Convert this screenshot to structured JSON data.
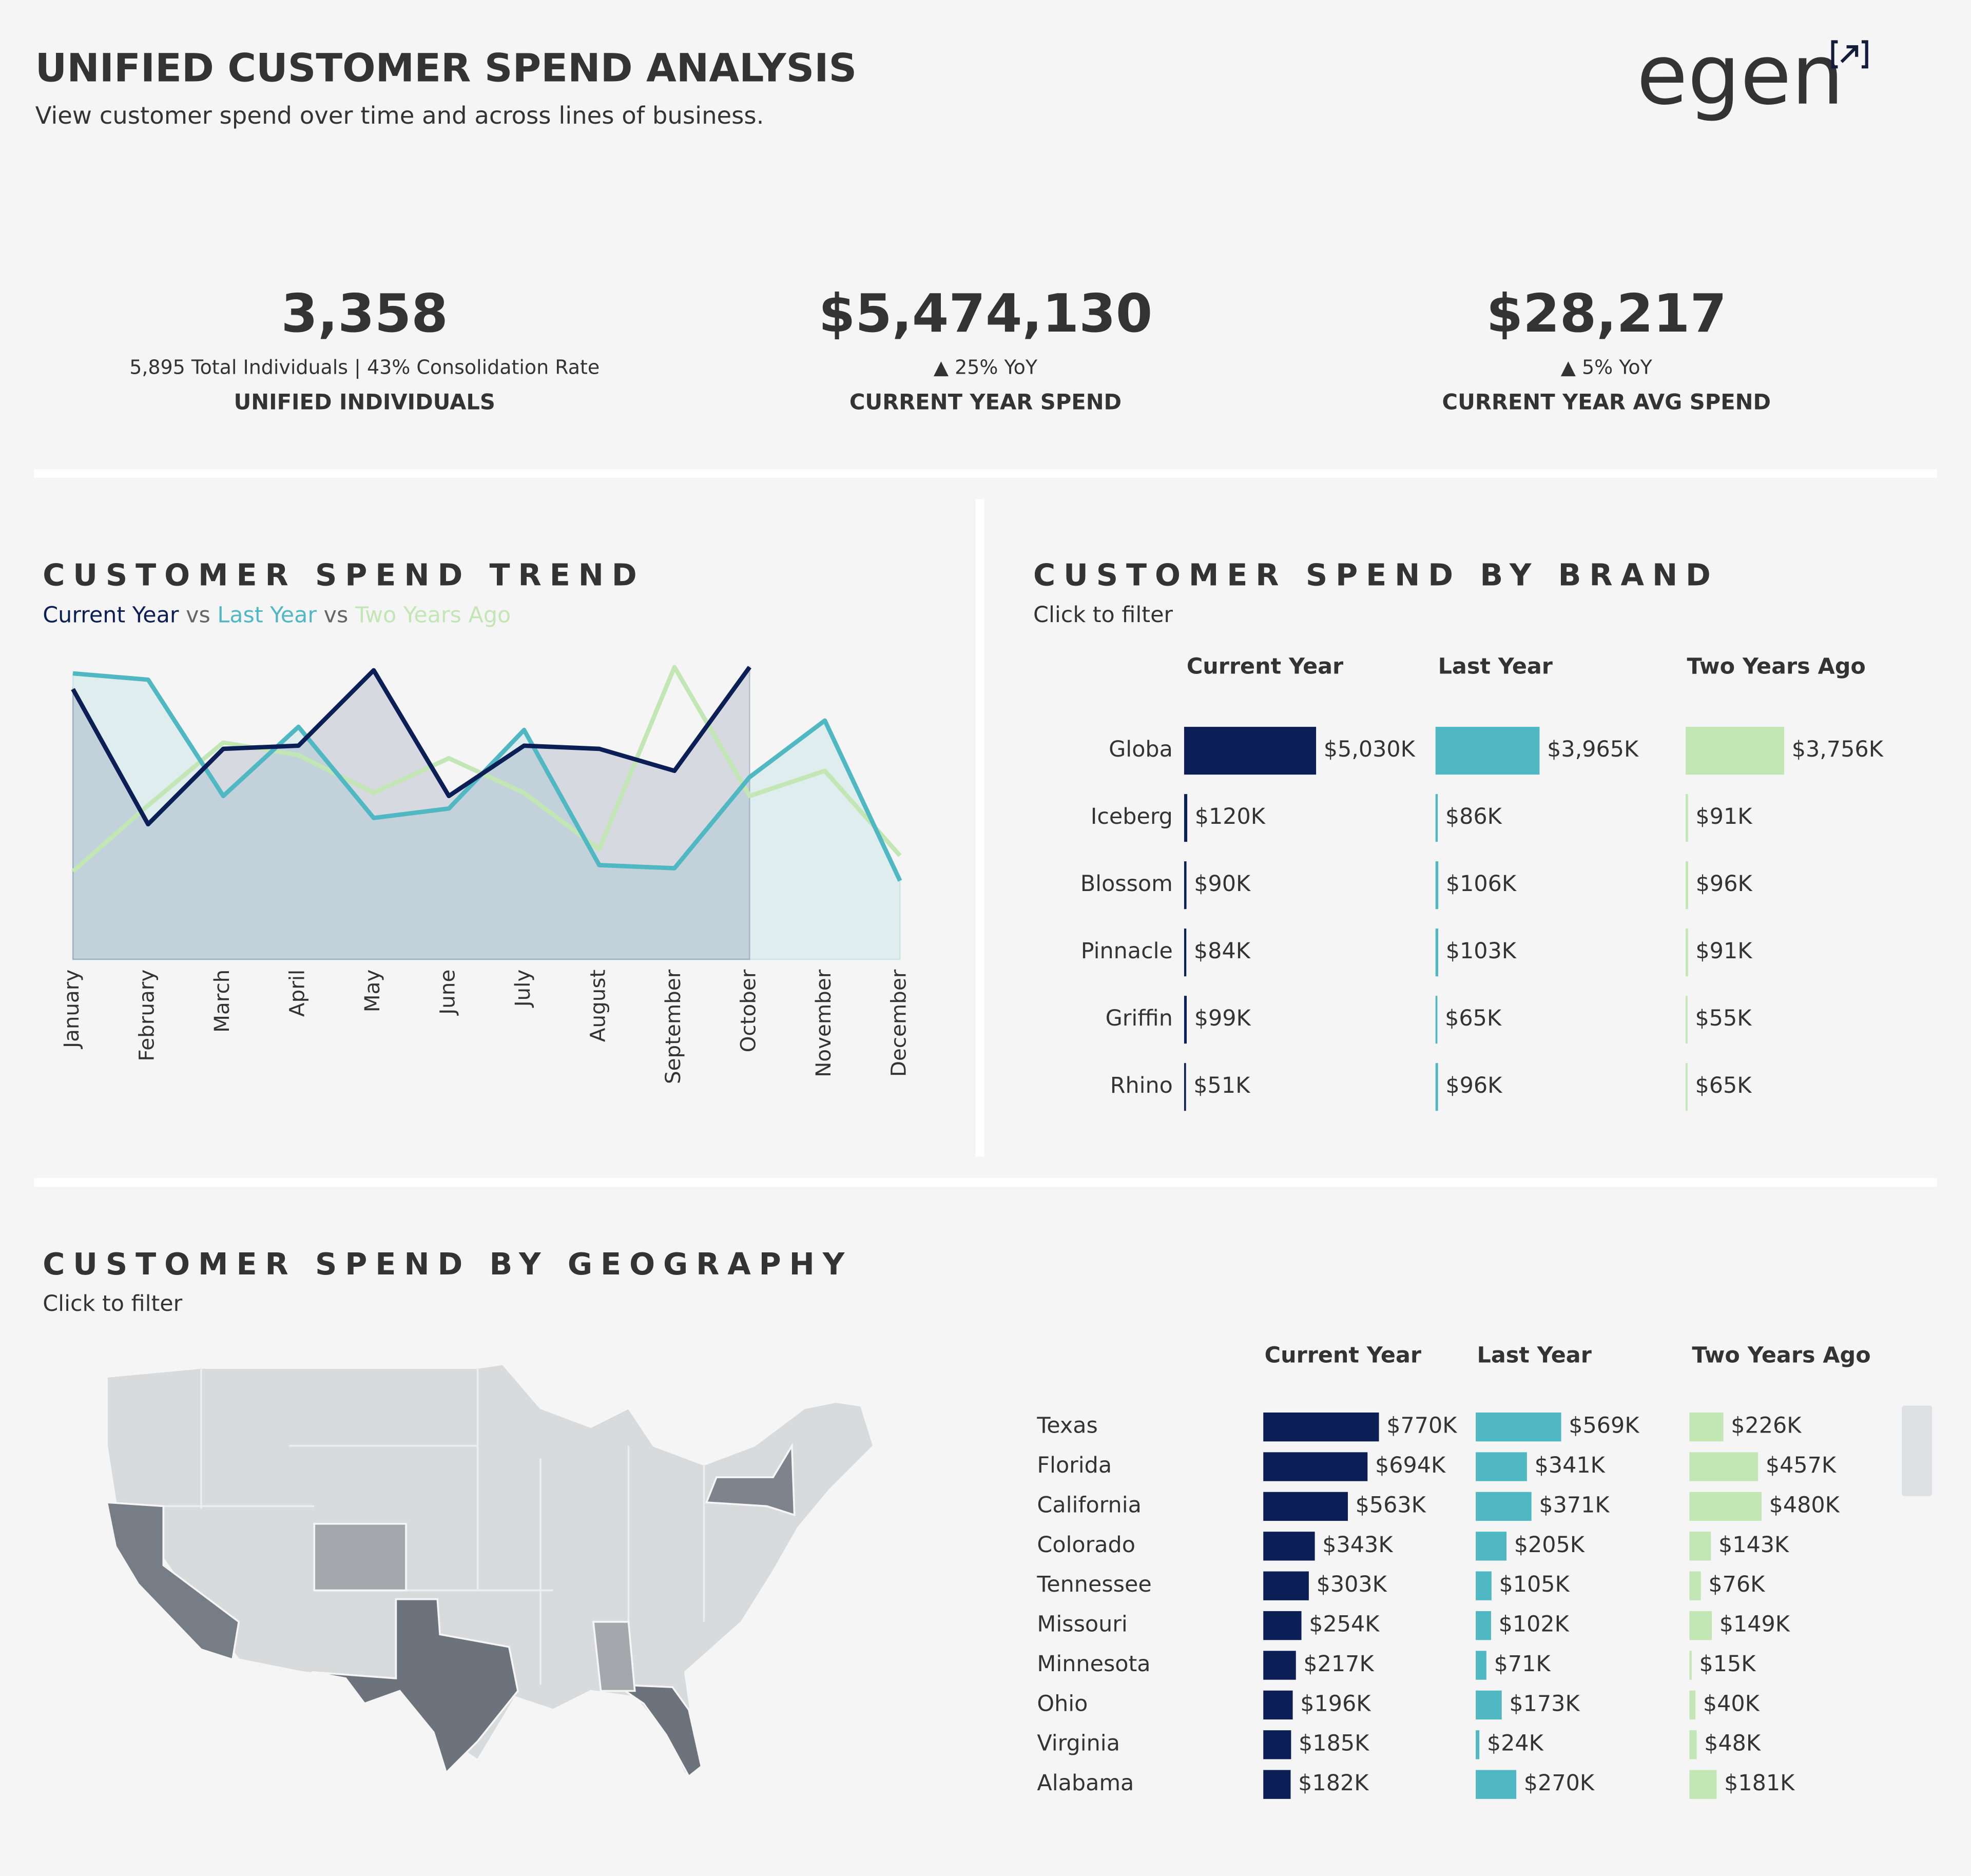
{
  "header": {
    "title": "UNIFIED CUSTOMER SPEND ANALYSIS",
    "subtitle": "View customer spend over time and across lines of business.",
    "logo": "egen"
  },
  "kpis": [
    {
      "value": "3,358",
      "detail": "5,895  Total Individuals | 43% Consolidation Rate",
      "label": "UNIFIED INDIVIDUALS"
    },
    {
      "value": "$5,474,130",
      "detail": "▲ 25% YoY",
      "label": "CURRENT YEAR SPEND"
    },
    {
      "value": "$28,217",
      "detail": "▲ 5% YoY",
      "label": "CURRENT YEAR AVG SPEND"
    }
  ],
  "chart_data": [
    {
      "type": "line",
      "title": "CUSTOMER SPEND TREND",
      "legend_separator": "vs",
      "categories": [
        "January",
        "February",
        "March",
        "April",
        "May",
        "June",
        "July",
        "August",
        "September",
        "October",
        "November",
        "December"
      ],
      "ylim": [
        0,
        100
      ],
      "series": [
        {
          "name": "Current Year",
          "color": "#0b1f56",
          "area": true,
          "values": [
            86,
            43,
            67,
            68,
            92,
            52,
            68,
            67,
            60,
            93,
            null,
            null
          ]
        },
        {
          "name": "Last Year",
          "color": "#4fb8c2",
          "area": true,
          "values": [
            91,
            89,
            52,
            74,
            45,
            48,
            73,
            30,
            29,
            58,
            76,
            25
          ]
        },
        {
          "name": "Two Years Ago",
          "color": "#c2e6b4",
          "area": false,
          "values": [
            28,
            49,
            69,
            65,
            53,
            64,
            53,
            35,
            93,
            52,
            60,
            33
          ]
        }
      ]
    },
    {
      "type": "bar",
      "orientation": "horizontal",
      "title": "CUSTOMER SPEND BY BRAND",
      "subtitle": "Click to filter",
      "categories": [
        "Globa",
        "Iceberg",
        "Blossom",
        "Pinnacle",
        "Griffin",
        "Rhino"
      ],
      "series": [
        {
          "name": "Current Year",
          "color": "#0b1f56",
          "values": [
            5030,
            120,
            90,
            84,
            99,
            51
          ],
          "value_labels": [
            "$5,030K",
            "$120K",
            "$90K",
            "$84K",
            "$99K",
            "$51K"
          ]
        },
        {
          "name": "Last Year",
          "color": "#4fb8c2",
          "values": [
            3965,
            86,
            106,
            103,
            65,
            96
          ],
          "value_labels": [
            "$3,965K",
            "$86K",
            "$106K",
            "$103K",
            "$65K",
            "$96K"
          ]
        },
        {
          "name": "Two Years Ago",
          "color": "#c2e6b4",
          "values": [
            3756,
            91,
            96,
            91,
            55,
            65
          ],
          "value_labels": [
            "$3,756K",
            "$91K",
            "$96K",
            "$91K",
            "$55K",
            "$65K"
          ]
        }
      ]
    },
    {
      "type": "bar",
      "orientation": "horizontal",
      "title": "CUSTOMER SPEND BY GEOGRAPHY",
      "subtitle": "Click to filter",
      "categories": [
        "Texas",
        "Florida",
        "California",
        "Colorado",
        "Tennessee",
        "Missouri",
        "Minnesota",
        "Ohio",
        "Virginia",
        "Alabama"
      ],
      "series": [
        {
          "name": "Current Year",
          "color": "#0b1f56",
          "values": [
            770,
            694,
            563,
            343,
            303,
            254,
            217,
            196,
            185,
            182
          ],
          "value_labels": [
            "$770K",
            "$694K",
            "$563K",
            "$343K",
            "$303K",
            "$254K",
            "$217K",
            "$196K",
            "$185K",
            "$182K"
          ]
        },
        {
          "name": "Last Year",
          "color": "#4fb8c2",
          "values": [
            569,
            341,
            371,
            205,
            105,
            102,
            71,
            173,
            24,
            270
          ],
          "value_labels": [
            "$569K",
            "$341K",
            "$371K",
            "$205K",
            "$105K",
            "$102K",
            "$71K",
            "$173K",
            "$24K",
            "$270K"
          ]
        },
        {
          "name": "Two Years Ago",
          "color": "#c2e6b4",
          "values": [
            226,
            457,
            480,
            143,
            76,
            149,
            15,
            40,
            48,
            181
          ],
          "value_labels": [
            "$226K",
            "$457K",
            "$480K",
            "$143K",
            "$76K",
            "$149K",
            "$15K",
            "$40K",
            "$48K",
            "$181K"
          ]
        }
      ]
    }
  ]
}
